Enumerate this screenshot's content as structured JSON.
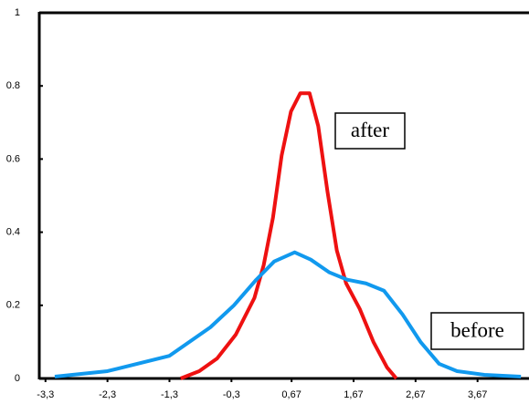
{
  "chart_data": {
    "type": "line",
    "xlim": [
      -3.4,
      4.5
    ],
    "ylim": [
      0,
      1
    ],
    "xticks": [
      {
        "value": -3.3,
        "label": "-3,3"
      },
      {
        "value": -2.3,
        "label": "-2,3"
      },
      {
        "value": -1.3,
        "label": "-1,3"
      },
      {
        "value": -0.3,
        "label": "-0,3"
      },
      {
        "value": 0.67,
        "label": "0,67"
      },
      {
        "value": 1.67,
        "label": "1,67"
      },
      {
        "value": 2.67,
        "label": "2,67"
      },
      {
        "value": 3.67,
        "label": "3,67"
      }
    ],
    "yticks": [
      0,
      0.2,
      0.4,
      0.6,
      0.8,
      1
    ],
    "series": [
      {
        "name": "after",
        "color": "#ee1111",
        "x": [
          -1.12,
          -0.82,
          -0.53,
          -0.23,
          0.07,
          0.22,
          0.37,
          0.51,
          0.66,
          0.81,
          0.96,
          1.1,
          1.25,
          1.4,
          1.55,
          1.77,
          1.99,
          2.21,
          2.36
        ],
        "values": [
          0,
          0.02,
          0.055,
          0.12,
          0.22,
          0.31,
          0.44,
          0.61,
          0.73,
          0.78,
          0.78,
          0.69,
          0.51,
          0.35,
          0.26,
          0.19,
          0.1,
          0.03,
          0
        ]
      },
      {
        "name": "before",
        "color": "#1199ee",
        "x": [
          -3.15,
          -2.3,
          -1.3,
          -0.64,
          -0.26,
          0.1,
          0.39,
          0.72,
          0.98,
          1.28,
          1.57,
          1.87,
          2.16,
          2.46,
          2.75,
          3.05,
          3.34,
          3.78,
          4.37
        ],
        "values": [
          0.005,
          0.02,
          0.062,
          0.14,
          0.2,
          0.27,
          0.32,
          0.345,
          0.325,
          0.29,
          0.27,
          0.26,
          0.24,
          0.175,
          0.1,
          0.04,
          0.02,
          0.01,
          0.005
        ]
      }
    ]
  }
}
